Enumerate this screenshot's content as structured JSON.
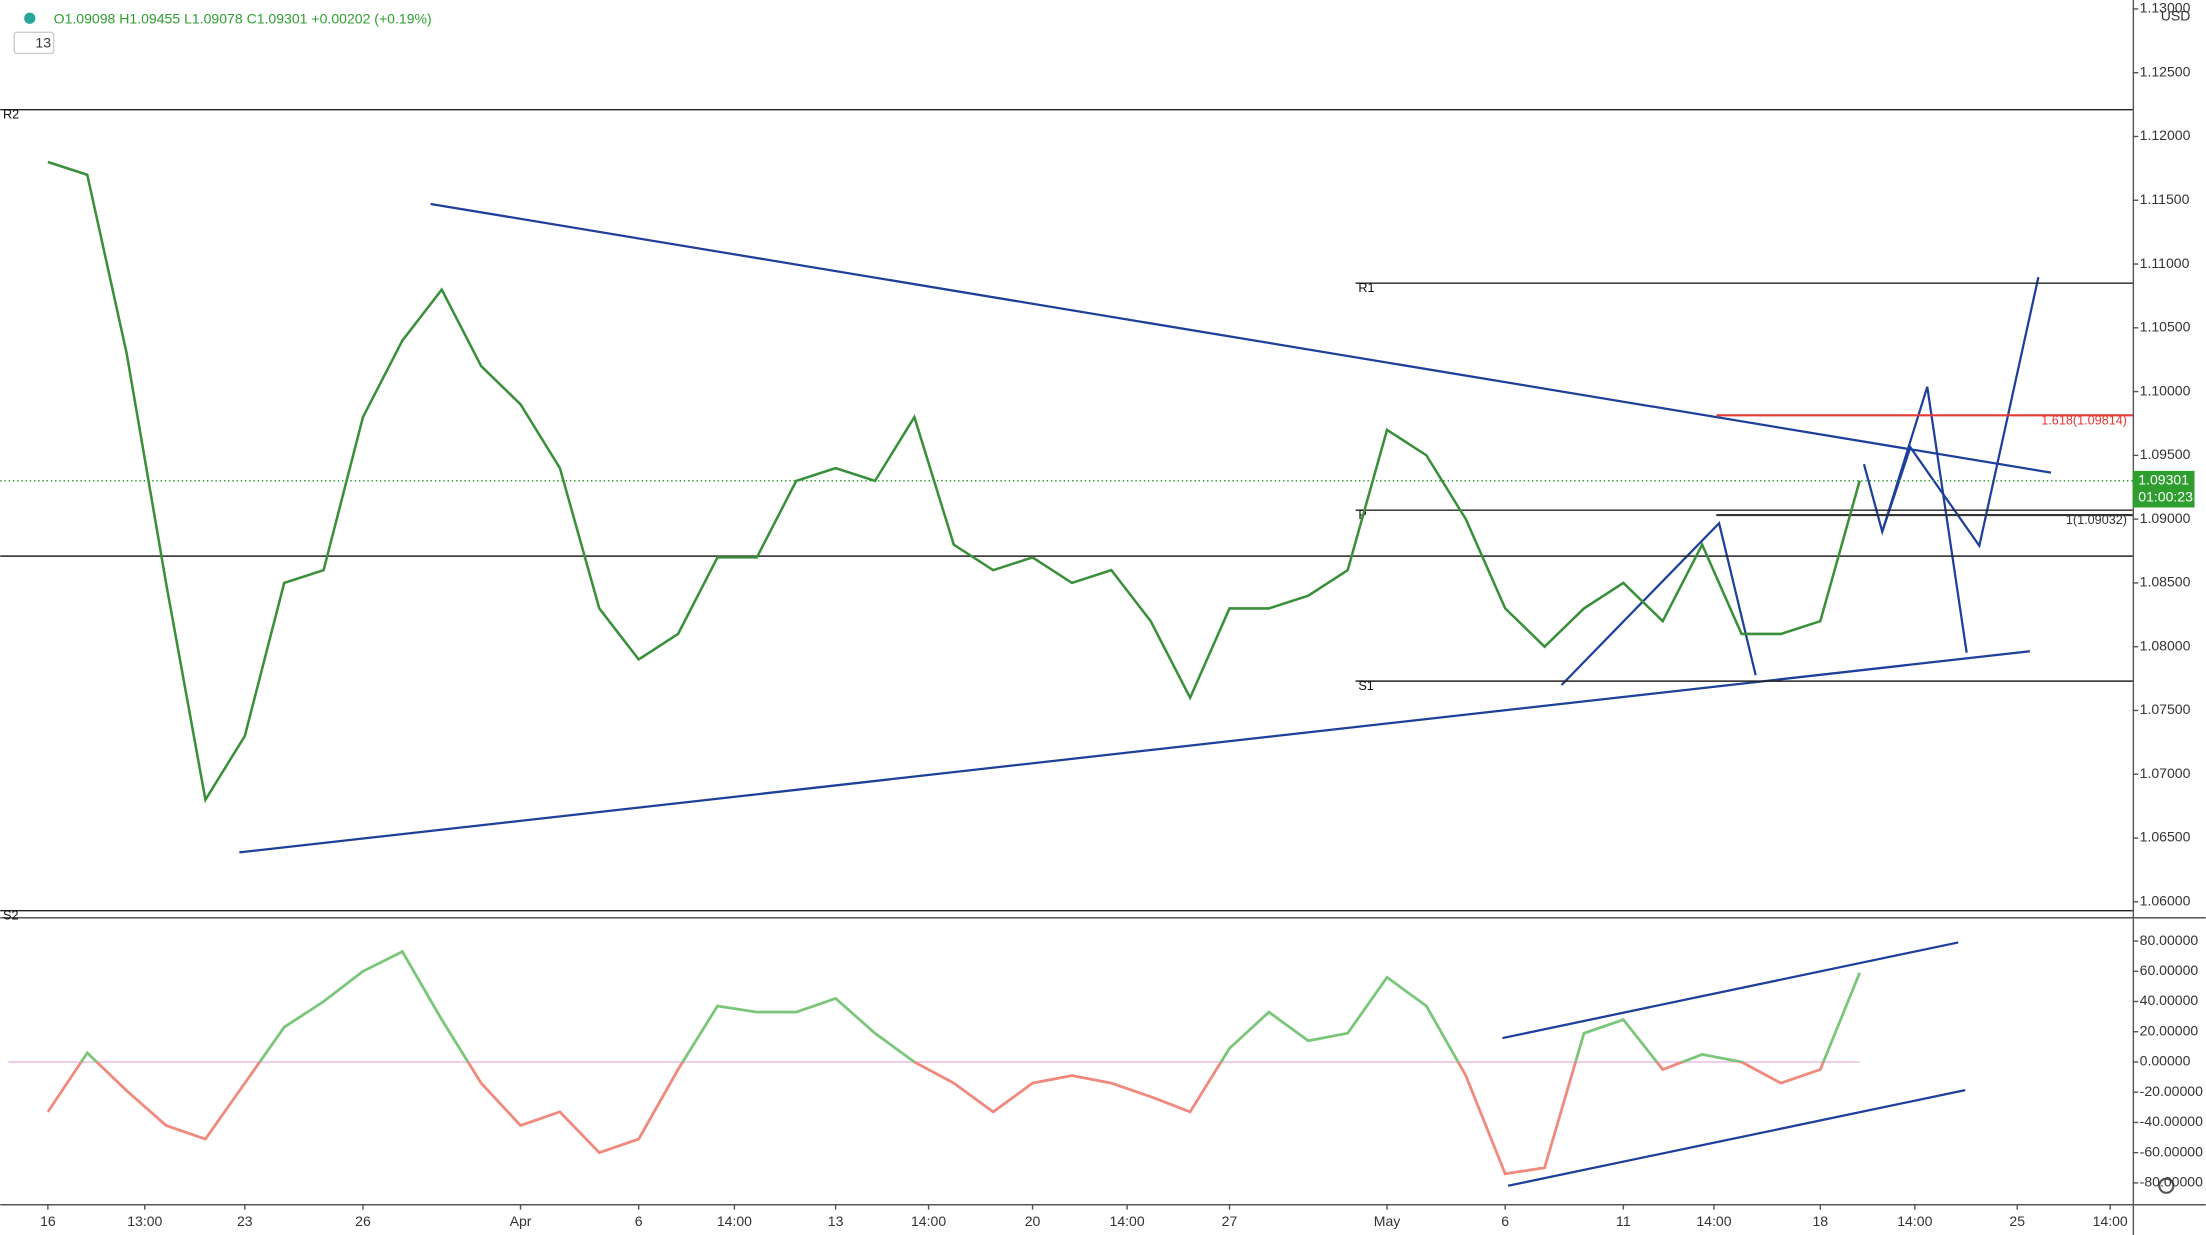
{
  "chart_data": {
    "type": "line",
    "header": "O1.09098 H1.09455 L1.09078 C1.09301 +0.00202 (+0.19%)",
    "interval": "13",
    "currency": "USD",
    "x": [
      0,
      1,
      2,
      3,
      4,
      5,
      6,
      7,
      8,
      9,
      10,
      11,
      12,
      13,
      14,
      15,
      16,
      17,
      18,
      19,
      20,
      21,
      22,
      23,
      24,
      25,
      26,
      27,
      28,
      29,
      30,
      31,
      32,
      33,
      34,
      35,
      36,
      37,
      38,
      39,
      40,
      41,
      42,
      43,
      44,
      45,
      46
    ],
    "series": [
      {
        "color": "#3a8f3a",
        "values": [
          1.118,
          1.117,
          1.103,
          1.085,
          1.068,
          1.073,
          1.085,
          1.086,
          1.098,
          1.104,
          1.108,
          1.102,
          1.099,
          1.094,
          1.083,
          1.079,
          1.081,
          1.087,
          1.087,
          1.093,
          1.094,
          1.093,
          1.098,
          1.088,
          1.086,
          1.087,
          1.085,
          1.086,
          1.082,
          1.076,
          1.083,
          1.083,
          1.084,
          1.086,
          1.097,
          1.095,
          1.09,
          1.083,
          1.08,
          1.083,
          1.085,
          1.082,
          1.088,
          1.081,
          1.081,
          1.082,
          1.09301
        ]
      }
    ],
    "oscillator": {
      "color_up": "#7bc67b",
      "color_down": "#ef8a7e",
      "values": [
        -33,
        6,
        -19,
        -42,
        -51,
        -14,
        23,
        40,
        60,
        73,
        28,
        -14,
        -42,
        -33,
        -60,
        -51,
        -5,
        37,
        33,
        33,
        42,
        19,
        0,
        -14,
        -33,
        -14,
        -9,
        -14,
        -23,
        -33,
        9,
        33,
        14,
        19,
        56,
        37,
        -9,
        -74,
        -70,
        19,
        28,
        -5,
        5,
        0,
        -14,
        -5,
        59
      ],
      "ylim": [
        -94,
        94.9
      ],
      "yticks": [
        {
          "value": 80,
          "label": "80.00000"
        },
        {
          "value": 60,
          "label": "60.00000"
        },
        {
          "value": 40,
          "label": "40.00000"
        },
        {
          "value": 20,
          "label": "20.00000"
        },
        {
          "value": 0,
          "label": "0.00000"
        },
        {
          "value": -20,
          "label": "-20.00000"
        },
        {
          "value": -40,
          "label": "-40.00000"
        },
        {
          "value": -60,
          "label": "-60.00000"
        },
        {
          "value": -80,
          "label": "-80.00000"
        }
      ]
    },
    "xlim": [
      -1.21,
      52.93
    ],
    "xticks": [
      {
        "value": 0,
        "label": "16"
      },
      {
        "value": 2.46,
        "label": "13:00"
      },
      {
        "value": 5,
        "label": "23"
      },
      {
        "value": 8,
        "label": "26"
      },
      {
        "value": 12,
        "label": "Apr"
      },
      {
        "value": 15,
        "label": "6"
      },
      {
        "value": 17.43,
        "label": "14:00"
      },
      {
        "value": 20,
        "label": "13"
      },
      {
        "value": 22.36,
        "label": "14:00"
      },
      {
        "value": 25,
        "label": "20"
      },
      {
        "value": 27.4,
        "label": "14:00"
      },
      {
        "value": 30,
        "label": "27"
      },
      {
        "value": 34,
        "label": "May"
      },
      {
        "value": 37,
        "label": "6"
      },
      {
        "value": 40,
        "label": "11"
      },
      {
        "value": 42.3,
        "label": "14:00"
      },
      {
        "value": 45,
        "label": "18"
      },
      {
        "value": 47.4,
        "label": "14:00"
      },
      {
        "value": 50,
        "label": "25"
      },
      {
        "value": 52.36,
        "label": "14:00"
      }
    ],
    "ylim": [
      1.0588,
      1.1307
    ],
    "yticks": [
      {
        "value": 1.06,
        "label": "1.06000"
      },
      {
        "value": 1.065,
        "label": "1.06500"
      },
      {
        "value": 1.07,
        "label": "1.07000"
      },
      {
        "value": 1.075,
        "label": "1.07500"
      },
      {
        "value": 1.08,
        "label": "1.08000"
      },
      {
        "value": 1.085,
        "label": "1.08500"
      },
      {
        "value": 1.09,
        "label": "1.09000"
      },
      {
        "value": 1.095,
        "label": "1.09500"
      },
      {
        "value": 1.1,
        "label": "1.10000"
      },
      {
        "value": 1.105,
        "label": "1.10500"
      },
      {
        "value": 1.11,
        "label": "1.11000"
      },
      {
        "value": 1.115,
        "label": "1.11500"
      },
      {
        "value": 1.12,
        "label": "1.12000"
      },
      {
        "value": 1.125,
        "label": "1.12500"
      },
      {
        "value": 1.13,
        "label": "1.13000"
      }
    ],
    "levels": [
      {
        "label": "R2",
        "value": 1.1221,
        "from": -1.21
      },
      {
        "label": "R1",
        "value": 1.1085,
        "from": 33.2
      },
      {
        "label": null,
        "value": 1.0871,
        "from": -1.21
      },
      {
        "label": "P",
        "value": 1.0907,
        "from": 33.2
      },
      {
        "label": "S1",
        "value": 1.0773,
        "from": 33.2
      },
      {
        "label": "S2",
        "value": 1.0593,
        "from": -1.21
      }
    ],
    "fib": [
      {
        "value": 1.09814,
        "label": "1.618(1.09814)",
        "color": "#e53935"
      },
      {
        "value": 1.09032,
        "label": "1(1.09032)",
        "color": "#333333"
      }
    ],
    "fib_from": 42.36,
    "last_price": {
      "value": 1.09301,
      "label": "1.09301"
    },
    "countdown": "01:00:23"
  }
}
